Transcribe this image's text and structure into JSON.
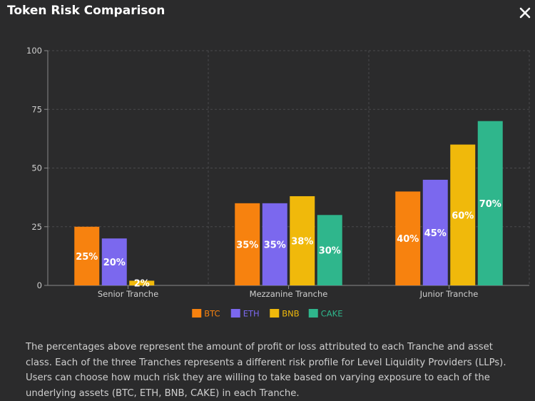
{
  "dialog": {
    "title": "Token Risk Comparison",
    "close_icon": "close-icon",
    "description": "The percentages above represent the amount of profit or loss attributed to each Tranche and asset class. Each of the three Tranches represents a different risk profile for Level Liquidity Providers (LLPs). Users can choose how much risk they are willing to take based on varying exposure to each of the underlying assets (BTC, ETH, BNB, CAKE) in each Tranche."
  },
  "chart_data": {
    "type": "bar",
    "title": "",
    "xlabel": "",
    "ylabel": "",
    "ylim": [
      0,
      100
    ],
    "yticks": [
      0,
      25,
      50,
      75,
      100
    ],
    "grid": true,
    "legend_position": "bottom-center",
    "categories": [
      "Senior Tranche",
      "Mezzanine Tranche",
      "Junior Tranche"
    ],
    "series": [
      {
        "name": "BTC",
        "color": "#f7820f",
        "values": [
          25,
          35,
          40
        ],
        "labels": [
          "25%",
          "35%",
          "40%"
        ]
      },
      {
        "name": "ETH",
        "color": "#7b68ee",
        "values": [
          20,
          35,
          45
        ],
        "labels": [
          "20%",
          "35%",
          "45%"
        ]
      },
      {
        "name": "BNB",
        "color": "#f0b90b",
        "values": [
          2,
          38,
          60
        ],
        "labels": [
          "2%",
          "38%",
          "60%"
        ]
      },
      {
        "name": "CAKE",
        "color": "#2fb68c",
        "values": [
          0,
          30,
          70
        ],
        "labels": [
          "",
          "30%",
          "70%"
        ]
      }
    ]
  }
}
